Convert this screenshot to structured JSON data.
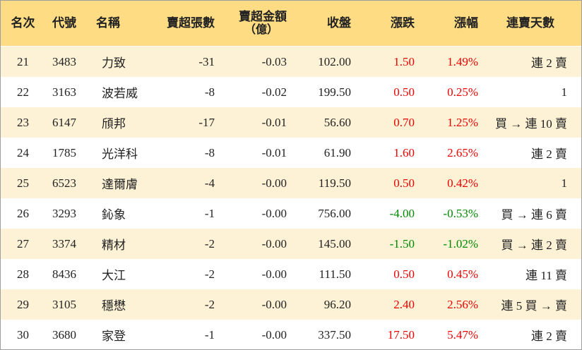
{
  "headers": {
    "rank": "名次",
    "code": "代號",
    "name": "名稱",
    "sell_lots": "賣超張數",
    "sell_amount_line1": "賣超金額",
    "sell_amount_line2": "（億）",
    "close": "收盤",
    "change": "漲跌",
    "change_pct": "漲幅",
    "streak": "連賣天數"
  },
  "colors": {
    "header_bg": "#fddc84",
    "alt_row_bg": "#fdf2d6",
    "up": "#ee0000",
    "down": "#008800"
  },
  "rows": [
    {
      "rank": "21",
      "code": "3483",
      "name": "力致",
      "sell_lots": "-31",
      "sell_amount": "-0.03",
      "close": "102.00",
      "change": "1.50",
      "change_pct": "1.49%",
      "direction": "up",
      "streak": "連 2 賣"
    },
    {
      "rank": "22",
      "code": "3163",
      "name": "波若威",
      "sell_lots": "-8",
      "sell_amount": "-0.02",
      "close": "199.50",
      "change": "0.50",
      "change_pct": "0.25%",
      "direction": "up",
      "streak": "1"
    },
    {
      "rank": "23",
      "code": "6147",
      "name": "頎邦",
      "sell_lots": "-17",
      "sell_amount": "-0.01",
      "close": "56.60",
      "change": "0.70",
      "change_pct": "1.25%",
      "direction": "up",
      "streak": "買 → 連 10 賣"
    },
    {
      "rank": "24",
      "code": "1785",
      "name": "光洋科",
      "sell_lots": "-8",
      "sell_amount": "-0.01",
      "close": "61.90",
      "change": "1.60",
      "change_pct": "2.65%",
      "direction": "up",
      "streak": "連 2 賣"
    },
    {
      "rank": "25",
      "code": "6523",
      "name": "達爾膚",
      "sell_lots": "-4",
      "sell_amount": "-0.00",
      "close": "119.50",
      "change": "0.50",
      "change_pct": "0.42%",
      "direction": "up",
      "streak": "1"
    },
    {
      "rank": "26",
      "code": "3293",
      "name": "鈊象",
      "sell_lots": "-1",
      "sell_amount": "-0.00",
      "close": "756.00",
      "change": "-4.00",
      "change_pct": "-0.53%",
      "direction": "down",
      "streak": "買 → 連 6 賣"
    },
    {
      "rank": "27",
      "code": "3374",
      "name": "精材",
      "sell_lots": "-2",
      "sell_amount": "-0.00",
      "close": "145.00",
      "change": "-1.50",
      "change_pct": "-1.02%",
      "direction": "down",
      "streak": "買 → 連 2 賣"
    },
    {
      "rank": "28",
      "code": "8436",
      "name": "大江",
      "sell_lots": "-2",
      "sell_amount": "-0.00",
      "close": "111.50",
      "change": "0.50",
      "change_pct": "0.45%",
      "direction": "up",
      "streak": "連 11 賣"
    },
    {
      "rank": "29",
      "code": "3105",
      "name": "穩懋",
      "sell_lots": "-2",
      "sell_amount": "-0.00",
      "close": "96.20",
      "change": "2.40",
      "change_pct": "2.56%",
      "direction": "up",
      "streak": "連 5 買 → 賣"
    },
    {
      "rank": "30",
      "code": "3680",
      "name": "家登",
      "sell_lots": "-1",
      "sell_amount": "-0.00",
      "close": "337.50",
      "change": "17.50",
      "change_pct": "5.47%",
      "direction": "up",
      "streak": "連 2 賣"
    }
  ]
}
